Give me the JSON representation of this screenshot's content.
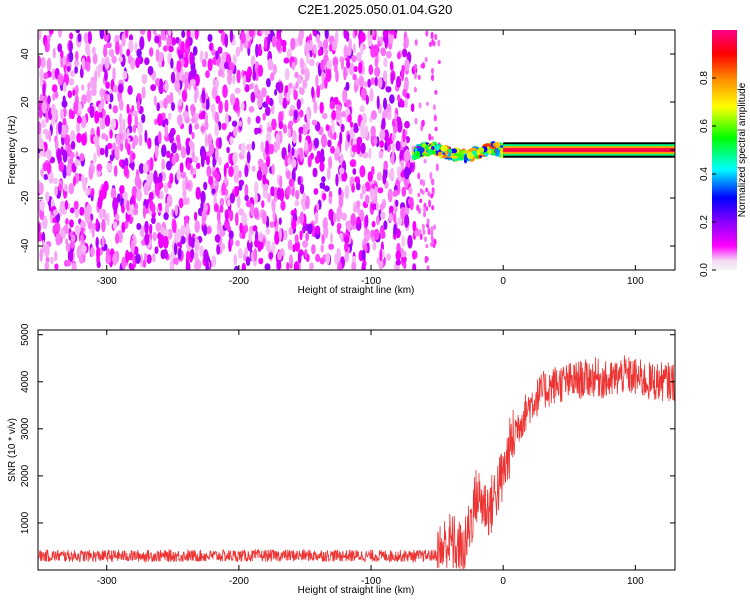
{
  "title": "C2E1.2025.050.01.04.G20",
  "chart_data": [
    {
      "type": "heatmap",
      "xlabel": "Height of straight line (km)",
      "ylabel": "Frequency (Hz)",
      "xlim": [
        -352,
        130
      ],
      "ylim": [
        -50,
        50
      ],
      "x_ticks": [
        -300,
        -200,
        -100,
        0,
        100
      ],
      "y_ticks": [
        -40,
        -20,
        0,
        20,
        40
      ],
      "colorbar": {
        "label": "Normalized spectral amplitude",
        "range": [
          0,
          1
        ],
        "ticks": [
          0.0,
          0.2,
          0.4,
          0.6,
          0.8
        ],
        "colormap": [
          "#f2f2f2",
          "#ff00ff",
          "#8000ff",
          "#0000ff",
          "#00ffff",
          "#00ff00",
          "#ffff00",
          "#ff8000",
          "#ff0000",
          "#ff0080"
        ]
      },
      "regions": [
        {
          "x_range": [
            -352,
            -67
          ],
          "frequency_range": [
            -50,
            50
          ],
          "amplitude": "noise 0.0-0.15"
        },
        {
          "x_range": [
            -67,
            0
          ],
          "frequency_range": [
            -5,
            5
          ],
          "amplitude": "signal 0.2-0.9"
        },
        {
          "x_range": [
            0,
            130
          ],
          "frequency_hz": 0,
          "amplitude": 1.0
        }
      ],
      "grid": false
    },
    {
      "type": "line",
      "xlabel": "Height of straight line (km)",
      "ylabel": "SNR (10 * v/v)",
      "xlim": [
        -352,
        130
      ],
      "ylim": [
        0,
        5100
      ],
      "x_ticks": [
        -300,
        -200,
        -100,
        0,
        100
      ],
      "y_ticks": [
        1000,
        2000,
        3000,
        4000,
        5000
      ],
      "series": [
        {
          "color": "#ee3333",
          "x": [
            -352,
            -300,
            -250,
            -200,
            -150,
            -100,
            -60,
            -50,
            -45,
            -40,
            -35,
            -30,
            -25,
            -20,
            -15,
            -10,
            -5,
            0,
            5,
            10,
            20,
            30,
            40,
            50,
            60,
            70,
            80,
            90,
            100,
            110,
            120,
            130
          ],
          "y": [
            300,
            300,
            300,
            300,
            310,
            300,
            300,
            320,
            500,
            600,
            500,
            300,
            1000,
            1600,
            1400,
            1300,
            1700,
            2000,
            2600,
            3000,
            3500,
            3800,
            3950,
            4000,
            4050,
            4100,
            4000,
            4150,
            4100,
            4000,
            4000,
            4000
          ]
        }
      ],
      "grid": false
    }
  ]
}
